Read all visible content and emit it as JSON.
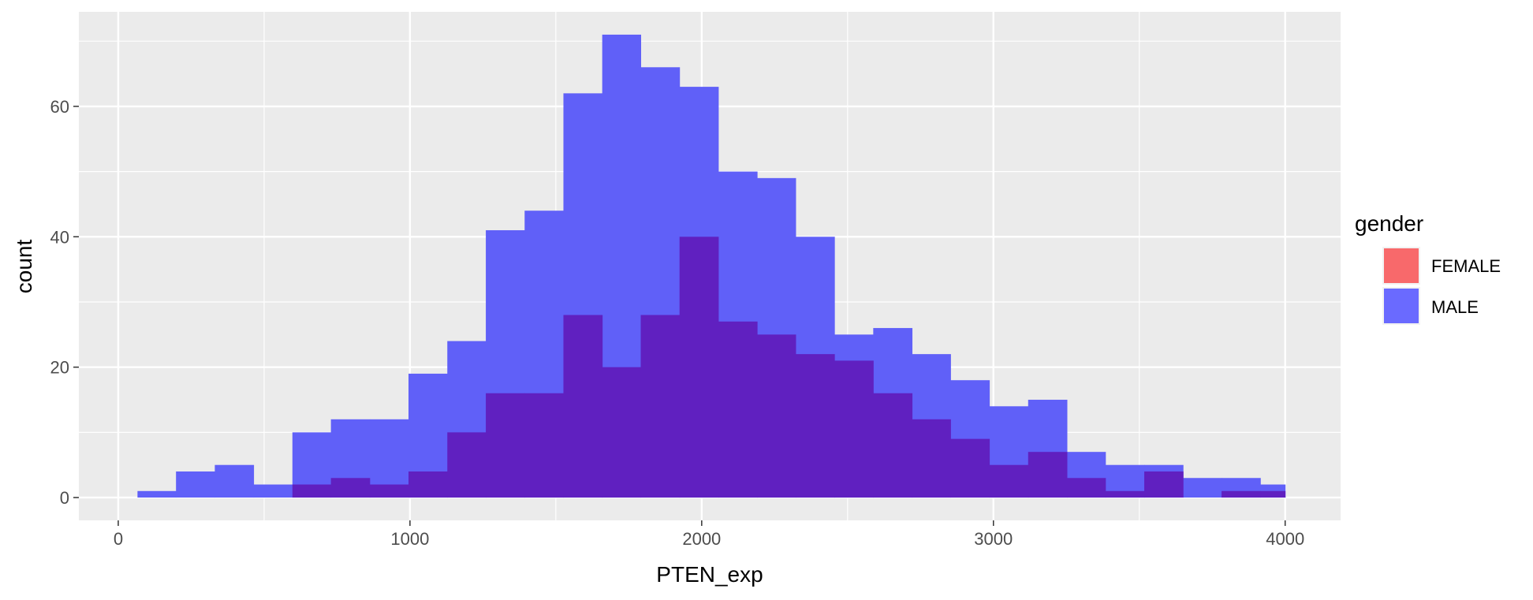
{
  "chart_data": {
    "type": "bar",
    "title": "",
    "xlabel": "PTEN_exp",
    "ylabel": "count",
    "xlim": [
      -135,
      4190
    ],
    "ylim": [
      -3.5,
      74.5
    ],
    "x_ticks": [
      0,
      1000,
      2000,
      3000,
      4000
    ],
    "x_tick_labels": [
      "0",
      "1000",
      "2000",
      "3000",
      "4000"
    ],
    "y_ticks": [
      0,
      20,
      40,
      60
    ],
    "y_tick_labels": [
      "0",
      "20",
      "40",
      "60"
    ],
    "bin_edges": [
      66,
      198,
      331,
      464,
      597,
      729,
      862,
      995,
      1128,
      1260,
      1393,
      1526,
      1659,
      1791,
      1924,
      2057,
      2190,
      2322,
      2455,
      2588,
      2721,
      2853,
      2986,
      3119,
      3252,
      3384,
      3517,
      3650,
      3782,
      3915,
      4000
    ],
    "series": [
      {
        "name": "MALE",
        "color": "#0000FF",
        "values": [
          1,
          4,
          5,
          2,
          10,
          12,
          12,
          19,
          24,
          41,
          44,
          62,
          71,
          66,
          63,
          50,
          49,
          40,
          25,
          26,
          22,
          18,
          14,
          15,
          7,
          5,
          5,
          3,
          3,
          2
        ]
      },
      {
        "name": "FEMALE",
        "color": "#FF0000",
        "values": [
          0,
          0,
          0,
          0,
          2,
          3,
          2,
          4,
          10,
          16,
          16,
          28,
          20,
          28,
          40,
          27,
          25,
          22,
          21,
          16,
          12,
          9,
          5,
          7,
          3,
          1,
          4,
          0,
          1,
          1
        ]
      }
    ],
    "grid": true,
    "legend_position": "right",
    "legend": {
      "title": "gender",
      "entries": [
        {
          "label": "FEMALE",
          "color": "#F8696B"
        },
        {
          "label": "MALE",
          "color": "#6A6AFF"
        }
      ]
    },
    "colors": {
      "panel_background": "#EBEBEB",
      "grid_major": "#FFFFFF",
      "male_fill": "#6060F8",
      "overlap_fill": "#6020C0"
    }
  }
}
